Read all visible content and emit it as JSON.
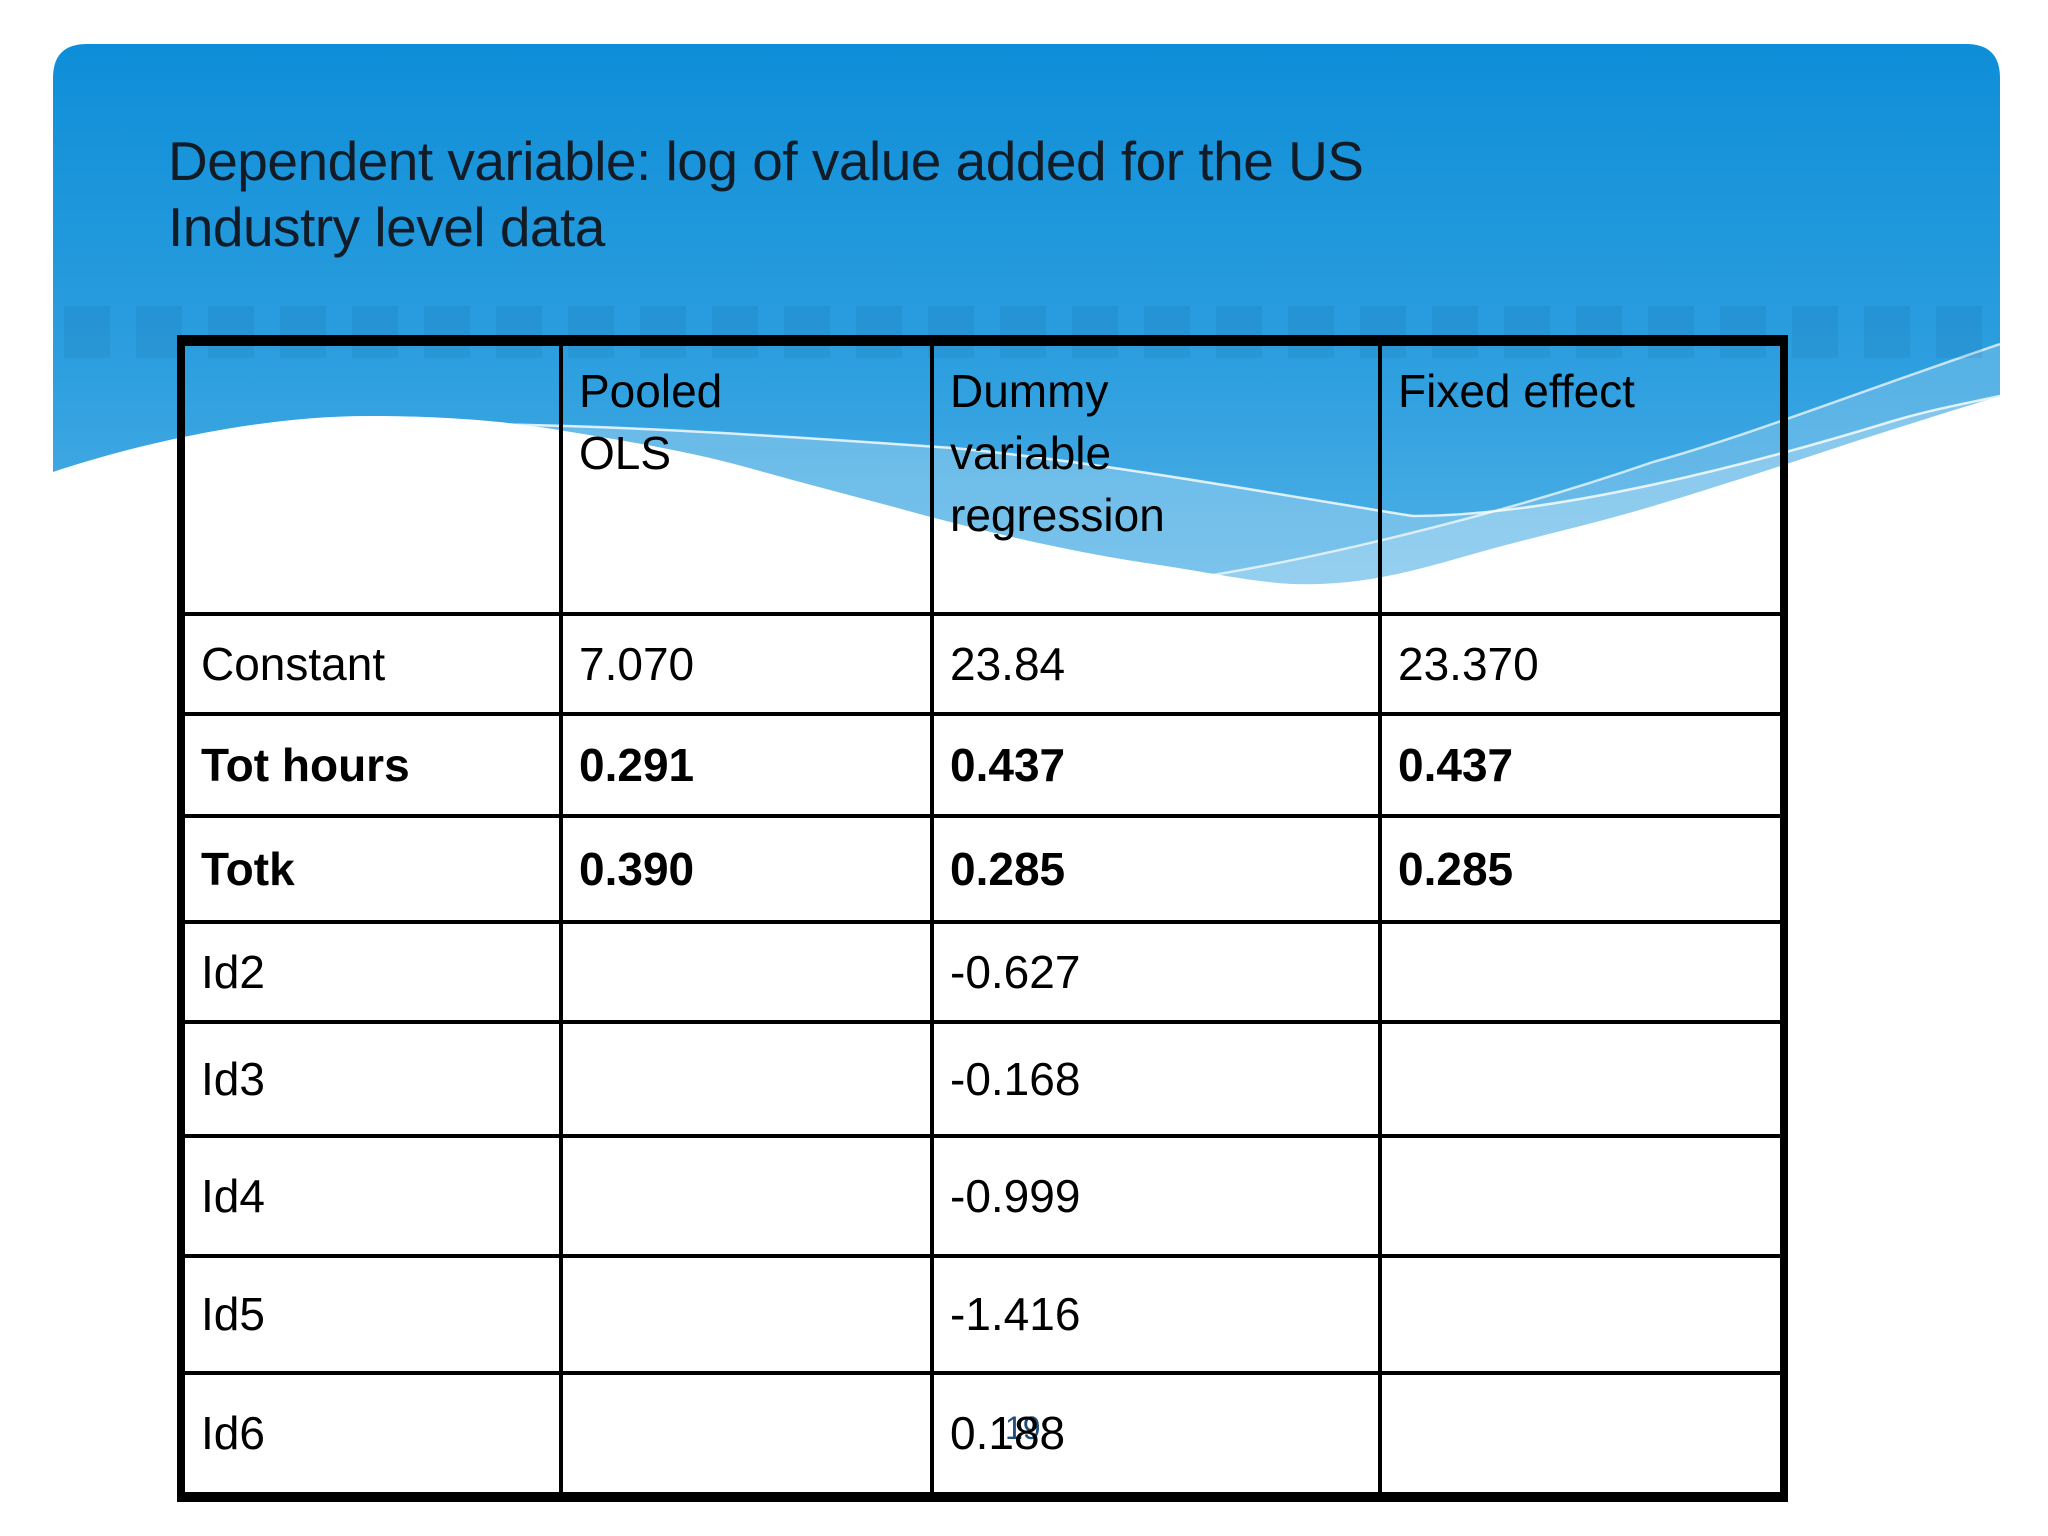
{
  "slide": {
    "title_line1": "Dependent variable: log of value added for the US",
    "title_line2": "Industry level data",
    "page_number": "19",
    "colors": {
      "header_blue_top": "#0e8ed8",
      "header_blue_mid": "#2e9fdf",
      "header_blue_bottom": "#63baea",
      "title_text": "#121c26",
      "table_border": "#000000",
      "table_text": "#000000",
      "page_number_text": "#1f4e79",
      "background": "#ffffff"
    }
  },
  "table": {
    "columns": [
      {
        "label": "",
        "lines": []
      },
      {
        "label": "Pooled OLS",
        "lines": [
          "Pooled",
          "OLS"
        ]
      },
      {
        "label": "Dummy variable regression",
        "lines": [
          "Dummy",
          "variable",
          "regression"
        ]
      },
      {
        "label": "Fixed effect",
        "lines": [
          "Fixed effect"
        ]
      }
    ],
    "rows": [
      {
        "label": "Constant",
        "bold": false,
        "values": [
          "7.070",
          "23.84",
          "23.370"
        ]
      },
      {
        "label": "Tot hours",
        "bold": true,
        "values": [
          "0.291",
          "0.437",
          "0.437"
        ]
      },
      {
        "label": "Totk",
        "bold": true,
        "values": [
          "0.390",
          "0.285",
          "0.285"
        ]
      },
      {
        "label": "Id2",
        "bold": false,
        "values": [
          "",
          "-0.627",
          ""
        ]
      },
      {
        "label": "Id3",
        "bold": false,
        "values": [
          "",
          "-0.168",
          ""
        ]
      },
      {
        "label": "Id4",
        "bold": false,
        "values": [
          "",
          "-0.999",
          ""
        ]
      },
      {
        "label": "Id5",
        "bold": false,
        "values": [
          "",
          "-1.416",
          ""
        ]
      },
      {
        "label": "Id6",
        "bold": false,
        "values": [
          "",
          "0.188",
          ""
        ]
      }
    ]
  }
}
